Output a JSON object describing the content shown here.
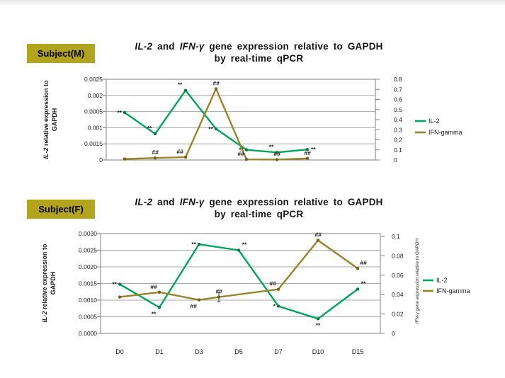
{
  "legend": {
    "items": [
      {
        "label": "IL-2",
        "series": "IL-2"
      },
      {
        "label": "IFN-gamma",
        "series": "IFN-gamma"
      }
    ]
  },
  "colors": {
    "il2": "#00a65c",
    "il2_marker": "#0a7a45",
    "ifn": "#97842b",
    "ifn_marker": "#6f611e",
    "badge_bg": "#b3a41d",
    "grid": "#a8a8a8",
    "axis": "#7f7f7f",
    "text": "#1a1a1a",
    "annotation": "#111111"
  },
  "charts": [
    {
      "id": "subject-m",
      "badge": "Subject(M)",
      "title": {
        "gene1": "IL-2",
        "and": " and ",
        "gene2": "IFN-γ",
        "rest": " gene expression relative to GAPDH",
        "line2": "by real-time qPCR"
      },
      "y_left_title": {
        "italic": "IL-2",
        "rest": " relative expression to",
        "line2": "GAPDH"
      },
      "chart_data": {
        "type": "line",
        "x_labels_visible": false,
        "x_point_count": 7,
        "left_axis_tick_labels_top_to_bottom": [
          "0.0025",
          "0.002",
          "0.0005",
          "0.001",
          "0.0015",
          "0"
        ],
        "right_axis_tick_labels_top_to_bottom": [
          "0.8",
          "0.7",
          "0.6",
          "0.5",
          "0.4",
          "0.3",
          "0.2",
          "0.1",
          "0"
        ],
        "right_axis_range": [
          0,
          0.8
        ],
        "grid": true,
        "legend_position": "right",
        "series": [
          {
            "name": "IL-2",
            "axis": "left",
            "unit": "fraction_of_left_axis_height",
            "points": [
              {
                "x": 0,
                "y_frac": 0.588,
                "ann": "**",
                "ann_pos": "left"
              },
              {
                "x": 1,
                "y_frac": 0.324,
                "ann": "**",
                "ann_pos": "above-left"
              },
              {
                "x": 2,
                "y_frac": 0.862,
                "ann": "**",
                "ann_pos": "above-left"
              },
              {
                "x": 3,
                "y_frac": 0.385,
                "ann": "**",
                "ann_pos": "left"
              },
              {
                "x": 4,
                "y_frac": 0.126,
                "ann": "**",
                "ann_pos": "left"
              },
              {
                "x": 5,
                "y_frac": 0.094,
                "ann": "**",
                "ann_pos": "above-left"
              },
              {
                "x": 6,
                "y_frac": 0.13,
                "ann": "**",
                "ann_pos": "right"
              }
            ]
          },
          {
            "name": "IFN-gamma",
            "axis": "right",
            "points": [
              {
                "x": 0,
                "value": 0.01
              },
              {
                "x": 1,
                "value": 0.02,
                "ann": "##",
                "ann_pos": "above"
              },
              {
                "x": 2,
                "value": 0.028,
                "ann": "##",
                "ann_pos": "above-left"
              },
              {
                "x": 3,
                "value": 0.706,
                "ann": "##",
                "ann_pos": "above"
              },
              {
                "x": 4,
                "value": 0.006,
                "ann": "##",
                "ann_pos": "above-left"
              },
              {
                "x": 5,
                "value": 0.004,
                "ann": "##",
                "ann_pos": "above"
              },
              {
                "x": 6,
                "value": 0.015,
                "ann": "##",
                "ann_pos": "above"
              }
            ]
          }
        ]
      }
    },
    {
      "id": "subject-f",
      "badge": "Subject(F)",
      "title": {
        "gene1": "IL-2",
        "and": " and ",
        "gene2": "IFN-γ",
        "rest": " gene expression relative to GAPDH",
        "line2": "by real-time qPCR"
      },
      "y_left_title": {
        "italic": "IL-2",
        "rest": " relative expression to",
        "line2": "GAPDH"
      },
      "y_right_title": {
        "italic": "IFN-γ",
        "rest": " gene expression relative to GAPDH"
      },
      "chart_data": {
        "type": "line",
        "x_labels_visible": true,
        "x_categories": [
          "D0",
          "D1",
          "D3",
          "D5",
          "D7",
          "D10",
          "D15"
        ],
        "left_axis_tick_labels_top_to_bottom": [
          "0.0030",
          "0.0025",
          "0.0020",
          "0.0015",
          "0.0010",
          "0.0005",
          "0.0000"
        ],
        "left_axis_range": [
          0,
          0.003
        ],
        "right_axis_tick_labels_top_to_bottom": [
          "0.1",
          "0.08",
          "0.06",
          "0.04",
          "0.02",
          "0"
        ],
        "right_axis_range": [
          0,
          0.1
        ],
        "grid": true,
        "legend_position": "right",
        "series": [
          {
            "name": "IL-2",
            "axis": "left",
            "points": [
              {
                "x": 0,
                "value": 0.00148,
                "ann": "**",
                "ann_pos": "left"
              },
              {
                "x": 1,
                "value": 0.00078,
                "ann": "**",
                "ann_pos": "below-left"
              },
              {
                "x": 2,
                "value": 0.00268,
                "ann": "**",
                "ann_pos": "left"
              },
              {
                "x": 3,
                "value": 0.0025,
                "ann": "**",
                "ann_pos": "above-right"
              },
              {
                "x": 4,
                "value": 0.00082,
                "ann": "*",
                "ann_pos": "left"
              },
              {
                "x": 5,
                "value": 0.00044,
                "ann": "**",
                "ann_pos": "below"
              },
              {
                "x": 6,
                "value": 0.00133,
                "ann": "**",
                "ann_pos": "above-right"
              }
            ]
          },
          {
            "name": "IFN-gamma",
            "axis": "right",
            "points": [
              {
                "x": 0,
                "value": 0.0375
              },
              {
                "x": 1,
                "value": 0.0425,
                "ann": "##",
                "ann_pos": "above-left"
              },
              {
                "x": 2,
                "value": 0.0345,
                "ann": "##",
                "ann_pos": "below-left"
              },
              {
                "x": 2.5,
                "value": 0.0375,
                "err": 0.005,
                "ann": "##",
                "ann_pos": "above"
              },
              {
                "x": 4,
                "value": 0.0455,
                "ann": "##",
                "ann_pos": "above-left"
              },
              {
                "x": 5,
                "value": 0.096,
                "ann": "##",
                "ann_pos": "above"
              },
              {
                "x": 6,
                "value": 0.067,
                "ann": "##",
                "ann_pos": "above-right"
              }
            ]
          }
        ]
      }
    }
  ]
}
